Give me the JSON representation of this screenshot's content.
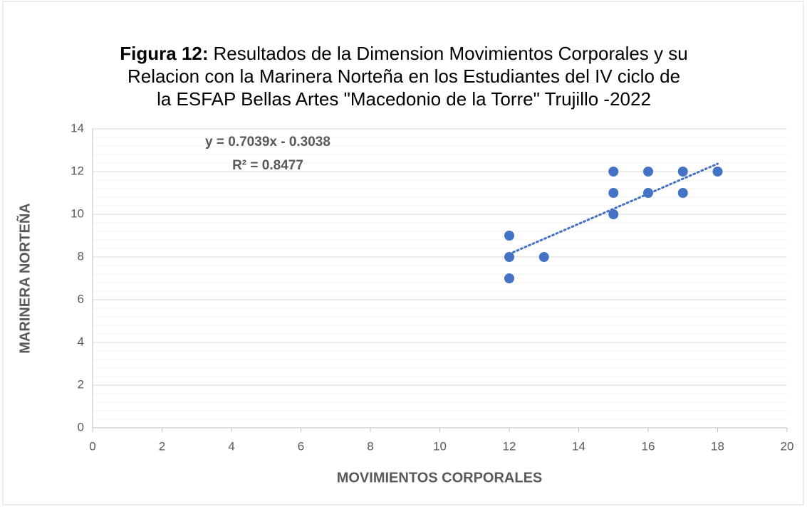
{
  "chart_data": {
    "type": "scatter",
    "title_bold": "Figura 12:",
    "title_lines": [
      "Resultados de la Dimension Movimientos Corporales y su",
      "Relacion con la Marinera Norteña  en los Estudiantes del IV ciclo de",
      "la ESFAP Bellas Artes \"Macedonio de la Torre\" Trujillo -2022"
    ],
    "xlabel": "MOVIMIENTOS CORPORALES",
    "ylabel": "MARINERA NORTEÑA",
    "series": [
      {
        "name": "Marinera Norteña",
        "color": "#4472c4",
        "x": [
          12,
          12,
          12,
          13,
          15,
          15,
          15,
          16,
          16,
          17,
          17,
          18
        ],
        "values": [
          9,
          8,
          7,
          8,
          12,
          11,
          10,
          12,
          11,
          12,
          11,
          12
        ]
      }
    ],
    "trendline": {
      "equation": "y = 0.7039x - 0.3038",
      "r2_label": "R² = 0.8477",
      "slope": 0.7039,
      "intercept": -0.3038,
      "x_range": [
        12,
        18
      ],
      "color": "#4472c4"
    },
    "xlim": [
      0,
      20
    ],
    "xticks": [
      0,
      2,
      4,
      6,
      8,
      10,
      12,
      14,
      16,
      18,
      20
    ],
    "ylim": [
      0,
      14
    ],
    "yticks": [
      0,
      2,
      4,
      6,
      8,
      10,
      12,
      14
    ],
    "grid": true,
    "minor_grid": true
  }
}
